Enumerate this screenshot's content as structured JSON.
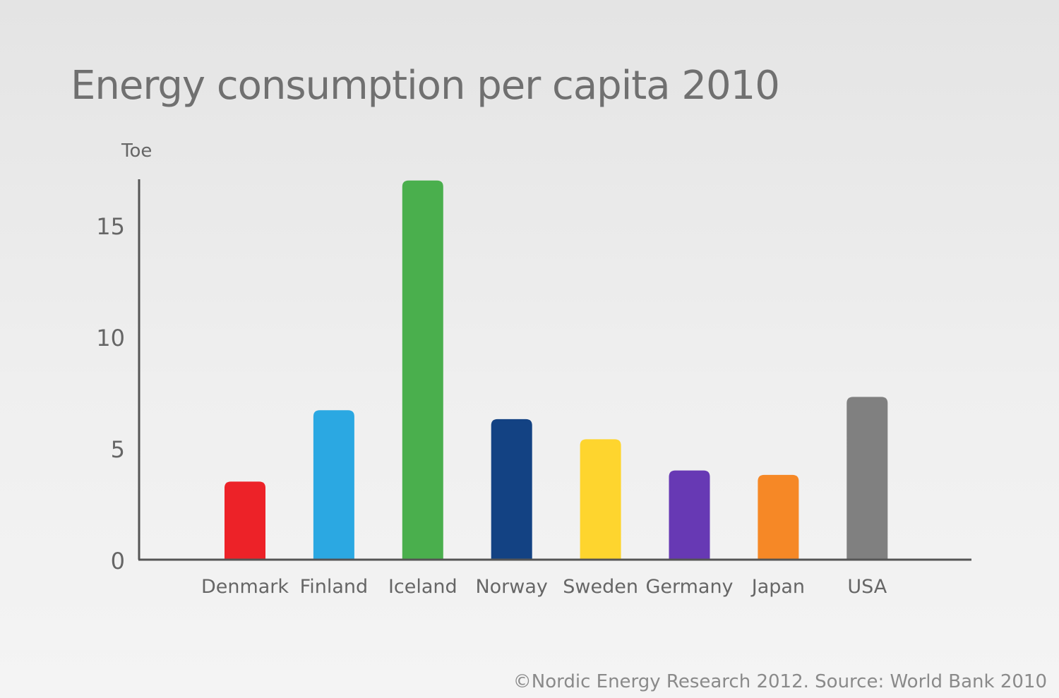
{
  "title": "Energy consumption per capita 2010",
  "credit": "©Nordic Energy Research 2012. Source: World Bank 2010",
  "chart_data": {
    "type": "bar",
    "title": "Energy consumption per capita 2010",
    "ylabel": "Toe",
    "xlabel": "",
    "ylim": [
      0,
      17
    ],
    "yticks": [
      0,
      5,
      10,
      15
    ],
    "grid": false,
    "legend": "none",
    "categories": [
      "Denmark",
      "Finland",
      "Iceland",
      "Norway",
      "Sweden",
      "Germany",
      "Japan",
      "USA"
    ],
    "values": [
      3.5,
      6.7,
      17.0,
      6.3,
      5.4,
      4.0,
      3.8,
      7.3
    ],
    "colors": [
      "#ed2228",
      "#2ba8e2",
      "#4aaf4d",
      "#134283",
      "#fed52e",
      "#6739b4",
      "#f68826",
      "#808080"
    ]
  }
}
